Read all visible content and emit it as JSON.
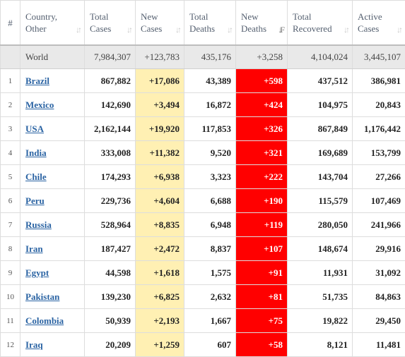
{
  "headers": {
    "idx": "#",
    "country": [
      "Country,",
      "Other"
    ],
    "total_cases": [
      "Total",
      "Cases"
    ],
    "new_cases": [
      "New",
      "Cases"
    ],
    "total_deaths": [
      "Total",
      "Deaths"
    ],
    "new_deaths": [
      "New",
      "Deaths"
    ],
    "total_recovered": [
      "Total",
      "Recovered"
    ],
    "active_cases": [
      "Active",
      "Cases"
    ]
  },
  "sort_icon": "sort-arrows-icon",
  "active_sort_column": "new_deaths",
  "colors": {
    "new_cases_bg": "#fff0b3",
    "new_deaths_bg": "#ff0000",
    "link": "#2a63a3",
    "world_row_bg": "#e9e9e9"
  },
  "world": {
    "name": "World",
    "total_cases": "7,984,307",
    "new_cases": "+123,783",
    "total_deaths": "435,176",
    "new_deaths": "+3,258",
    "total_recovered": "4,104,024",
    "active_cases": "3,445,107"
  },
  "rows": [
    {
      "idx": "1",
      "name": "Brazil",
      "total_cases": "867,882",
      "new_cases": "+17,086",
      "total_deaths": "43,389",
      "new_deaths": "+598",
      "total_recovered": "437,512",
      "active_cases": "386,981"
    },
    {
      "idx": "2",
      "name": "Mexico",
      "total_cases": "142,690",
      "new_cases": "+3,494",
      "total_deaths": "16,872",
      "new_deaths": "+424",
      "total_recovered": "104,975",
      "active_cases": "20,843"
    },
    {
      "idx": "3",
      "name": "USA",
      "total_cases": "2,162,144",
      "new_cases": "+19,920",
      "total_deaths": "117,853",
      "new_deaths": "+326",
      "total_recovered": "867,849",
      "active_cases": "1,176,442"
    },
    {
      "idx": "4",
      "name": "India",
      "total_cases": "333,008",
      "new_cases": "+11,382",
      "total_deaths": "9,520",
      "new_deaths": "+321",
      "total_recovered": "169,689",
      "active_cases": "153,799"
    },
    {
      "idx": "5",
      "name": "Chile",
      "total_cases": "174,293",
      "new_cases": "+6,938",
      "total_deaths": "3,323",
      "new_deaths": "+222",
      "total_recovered": "143,704",
      "active_cases": "27,266"
    },
    {
      "idx": "6",
      "name": "Peru",
      "total_cases": "229,736",
      "new_cases": "+4,604",
      "total_deaths": "6,688",
      "new_deaths": "+190",
      "total_recovered": "115,579",
      "active_cases": "107,469"
    },
    {
      "idx": "7",
      "name": "Russia",
      "total_cases": "528,964",
      "new_cases": "+8,835",
      "total_deaths": "6,948",
      "new_deaths": "+119",
      "total_recovered": "280,050",
      "active_cases": "241,966"
    },
    {
      "idx": "8",
      "name": "Iran",
      "total_cases": "187,427",
      "new_cases": "+2,472",
      "total_deaths": "8,837",
      "new_deaths": "+107",
      "total_recovered": "148,674",
      "active_cases": "29,916"
    },
    {
      "idx": "9",
      "name": "Egypt",
      "total_cases": "44,598",
      "new_cases": "+1,618",
      "total_deaths": "1,575",
      "new_deaths": "+91",
      "total_recovered": "11,931",
      "active_cases": "31,092"
    },
    {
      "idx": "10",
      "name": "Pakistan",
      "total_cases": "139,230",
      "new_cases": "+6,825",
      "total_deaths": "2,632",
      "new_deaths": "+81",
      "total_recovered": "51,735",
      "active_cases": "84,863"
    },
    {
      "idx": "11",
      "name": "Colombia",
      "total_cases": "50,939",
      "new_cases": "+2,193",
      "total_deaths": "1,667",
      "new_deaths": "+75",
      "total_recovered": "19,822",
      "active_cases": "29,450"
    },
    {
      "idx": "12",
      "name": "Iraq",
      "total_cases": "20,209",
      "new_cases": "+1,259",
      "total_deaths": "607",
      "new_deaths": "+58",
      "total_recovered": "8,121",
      "active_cases": "11,481"
    }
  ]
}
